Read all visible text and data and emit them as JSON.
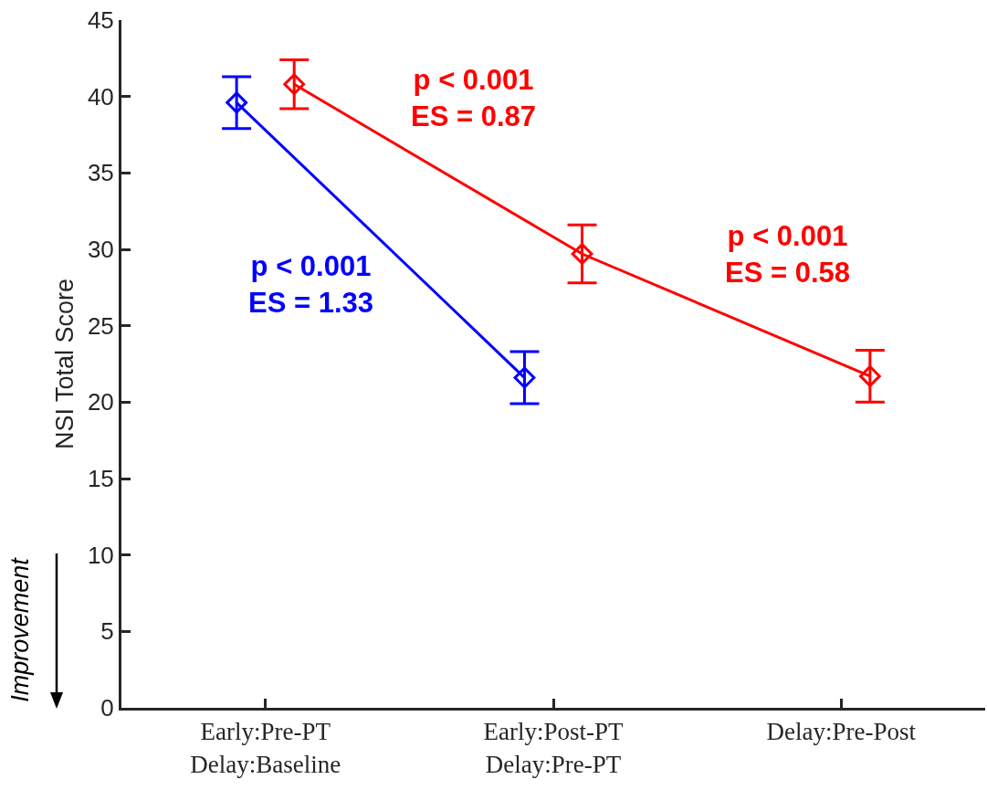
{
  "chart_data": {
    "type": "line",
    "ylabel": "NSI Total Score",
    "categories": [
      "Early:Pre-PT\nDelay:Baseline",
      "Early:Post-PT\nDelay:Pre-PT",
      "Delay:Pre-Post"
    ],
    "ylim": [
      0,
      45
    ],
    "yticks": [
      0,
      5,
      10,
      15,
      20,
      25,
      30,
      35,
      40,
      45
    ],
    "series": [
      {
        "color": "#0000ff",
        "values": [
          39.6,
          21.6,
          null
        ],
        "errors": [
          [
            37.9,
            41.3
          ],
          [
            19.9,
            23.3
          ],
          null
        ]
      },
      {
        "color": "#ff0000",
        "values": [
          40.8,
          29.7,
          21.7
        ],
        "errors": [
          [
            39.2,
            42.4
          ],
          [
            27.8,
            31.6
          ],
          [
            20.0,
            23.4
          ]
        ]
      }
    ],
    "marker": "diamond",
    "line_style": "solid",
    "grid": false,
    "annotations": [
      "p < 0.001\nES = 0.87",
      "p < 0.001\nES = 1.33",
      "p < 0.001\nES = 0.58",
      "Improvement"
    ]
  }
}
